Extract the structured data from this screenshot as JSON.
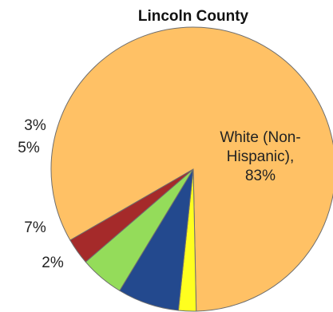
{
  "chart_data": {
    "type": "pie",
    "title": "Lincoln County",
    "slices": [
      {
        "label": "White (Non-Hispanic), 83%",
        "label_lines": [
          "White (Non-",
          "Hispanic),",
          "83%"
        ],
        "value": 83,
        "color": "#ffc165"
      },
      {
        "label": "2%",
        "label_lines": [
          "2%"
        ],
        "value": 2,
        "color": "#ffff1f"
      },
      {
        "label": "7%",
        "label_lines": [
          "7%"
        ],
        "value": 7,
        "color": "#23498e"
      },
      {
        "label": "5%",
        "label_lines": [
          "5%"
        ],
        "value": 5,
        "color": "#94dc5a"
      },
      {
        "label": "3%",
        "label_lines": [
          "3%"
        ],
        "value": 3,
        "color": "#a52a2a"
      }
    ],
    "legend": "none",
    "grid": false
  }
}
